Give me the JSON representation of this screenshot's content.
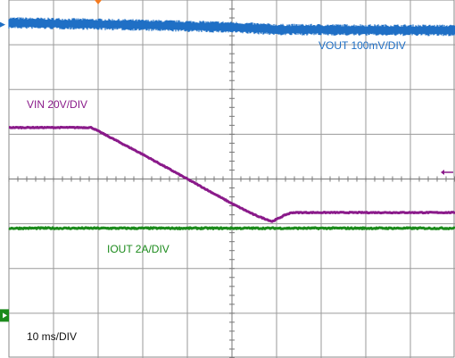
{
  "chart_data": {
    "type": "line",
    "title": "",
    "xlabel": "",
    "ylabel": "",
    "x_units": "ms",
    "time_scale": "10 ms/DIV",
    "x_divisions": 10,
    "y_divisions": 8,
    "grid": true,
    "annotations": {
      "vout": "VOUT 100mV/DIV",
      "vin": "VIN 20V/DIV",
      "iout": "IOUT 2A/DIV",
      "timebase": "10 ms/DIV"
    },
    "series": [
      {
        "name": "VOUT",
        "color": "#1f6fc5",
        "scale": "100mV/DIV",
        "x": [
          0,
          25,
          50,
          60,
          100
        ],
        "y_div": [
          3.49,
          3.45,
          3.39,
          3.34,
          3.32
        ],
        "noise_div": 0.13
      },
      {
        "name": "VIN",
        "color": "#8a1a8a",
        "scale": "20V/DIV",
        "x": [
          0,
          18.5,
          30,
          40,
          50,
          55,
          59,
          62,
          63.5,
          100
        ],
        "y_div": [
          1.15,
          1.15,
          0.55,
          0.0,
          -0.55,
          -0.8,
          -0.95,
          -0.8,
          -0.75,
          -0.75
        ],
        "noise_div": 0.02
      },
      {
        "name": "IOUT",
        "color": "#1b8a1b",
        "scale": "2A/DIV",
        "x": [
          0,
          100
        ],
        "y_div": [
          -1.1,
          -1.1
        ],
        "noise_div": 0.03
      }
    ],
    "markers": {
      "trigger_color": "#f47a20",
      "vout_ref_color": "#1f6fc5",
      "vin_ref_color": "#8a1a8a",
      "iout_ref_color": "#1b8a1b"
    }
  }
}
